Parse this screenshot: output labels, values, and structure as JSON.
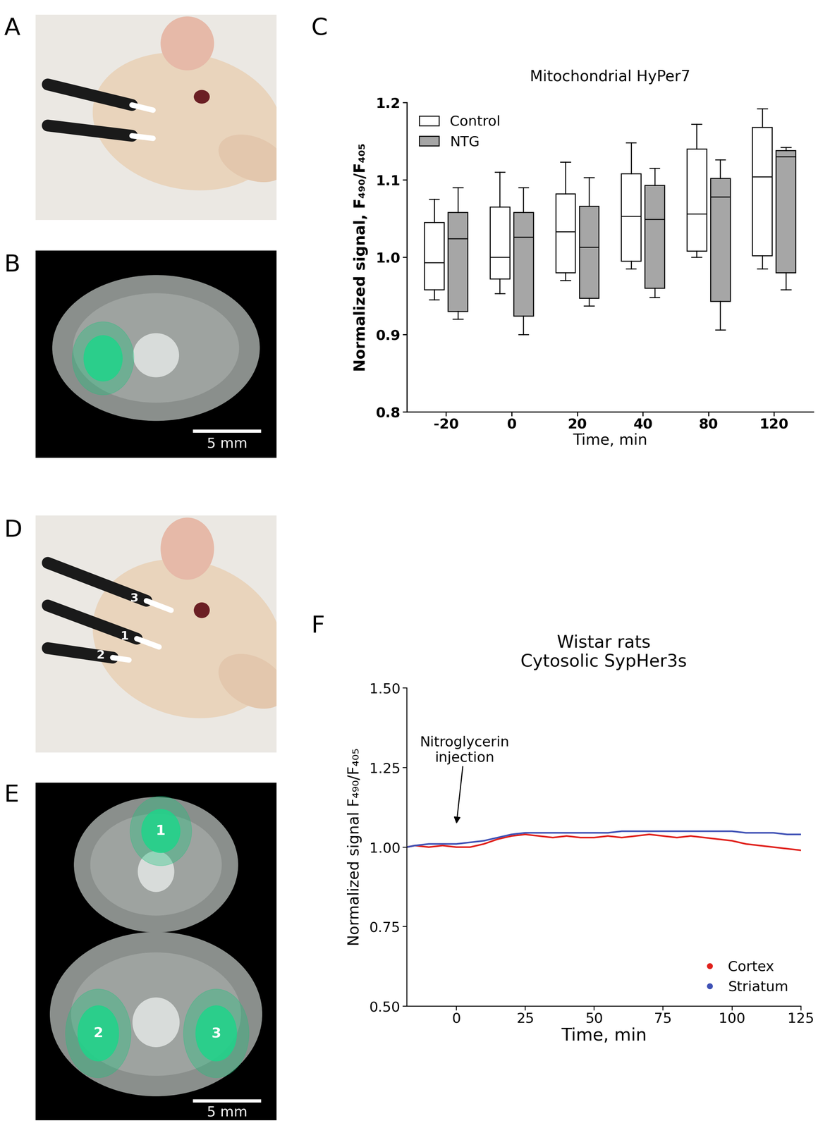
{
  "panel_labels": [
    "A",
    "B",
    "C",
    "D",
    "E",
    "F"
  ],
  "images": {
    "B": {
      "scale_bar": "5 mm"
    },
    "D": {
      "probe_labels": [
        "1",
        "2",
        "3"
      ]
    },
    "E": {
      "site_labels": [
        "1",
        "2",
        "3"
      ],
      "scale_bar": "5 mm"
    }
  },
  "chart_data": [
    {
      "type": "box",
      "title": "Mitochondrial HyPer7",
      "x_label": "Time, min",
      "y_label": "Normalized signal, F₄₉₀/F₄₀₅",
      "categories": [
        "-20",
        "0",
        "20",
        "40",
        "80",
        "120"
      ],
      "ylim": [
        0.8,
        1.2
      ],
      "yticks": [
        0.8,
        0.9,
        1.0,
        1.1,
        1.2
      ],
      "legend": "upper left",
      "series": [
        {
          "name": "Control",
          "color": "#ffffff",
          "whisker_low": [
            0.945,
            0.953,
            0.97,
            0.985,
            1.0,
            0.985
          ],
          "q1": [
            0.958,
            0.972,
            0.98,
            0.995,
            1.008,
            1.002
          ],
          "median": [
            0.993,
            1.0,
            1.033,
            1.053,
            1.056,
            1.104
          ],
          "q3": [
            1.045,
            1.065,
            1.082,
            1.108,
            1.14,
            1.168
          ],
          "whisker_high": [
            1.075,
            1.11,
            1.123,
            1.148,
            1.172,
            1.192
          ]
        },
        {
          "name": "NTG",
          "color": "#a6a6a6",
          "whisker_low": [
            0.92,
            0.9,
            0.937,
            0.948,
            0.906,
            0.958
          ],
          "q1": [
            0.93,
            0.924,
            0.947,
            0.96,
            0.943,
            0.98
          ],
          "median": [
            1.024,
            1.026,
            1.013,
            1.049,
            1.078,
            1.13
          ],
          "q3": [
            1.058,
            1.058,
            1.066,
            1.093,
            1.102,
            1.138
          ],
          "whisker_high": [
            1.09,
            1.09,
            1.103,
            1.115,
            1.126,
            1.142
          ]
        }
      ]
    },
    {
      "type": "line",
      "title": "Wistar rats\nCytosolic SypHer3s",
      "x_label": "Time, min",
      "y_label": "Normalized signal F₄₉₀/F₄₀₅",
      "x": [
        -18,
        -15,
        -10,
        -5,
        0,
        5,
        10,
        15,
        20,
        25,
        30,
        35,
        40,
        45,
        50,
        55,
        60,
        65,
        70,
        75,
        80,
        85,
        90,
        95,
        100,
        105,
        110,
        115,
        120,
        125
      ],
      "xlim": [
        -18,
        125
      ],
      "xticks": [
        0,
        25,
        50,
        75,
        100,
        125
      ],
      "ylim": [
        0.5,
        1.5
      ],
      "yticks": [
        {
          "value": 0.5,
          "label": "0.50"
        },
        {
          "value": 0.75,
          "label": "0.75"
        },
        {
          "value": 1.0,
          "label": "1.00"
        },
        {
          "value": 1.25,
          "label": "1.25"
        },
        {
          "value": 1.5,
          "label": "1.50"
        }
      ],
      "legend": "lower right",
      "annotation": {
        "text": "Nitroglycerin\ninjection",
        "x": 0,
        "y": 1.07
      },
      "series": [
        {
          "name": "Cortex",
          "color": "#e0201b",
          "values": [
            1.0,
            1.005,
            1.0,
            1.005,
            1.0,
            1.0,
            1.01,
            1.025,
            1.035,
            1.04,
            1.035,
            1.03,
            1.035,
            1.03,
            1.03,
            1.035,
            1.03,
            1.035,
            1.04,
            1.035,
            1.03,
            1.035,
            1.03,
            1.025,
            1.02,
            1.01,
            1.005,
            1.0,
            0.995,
            0.99
          ]
        },
        {
          "name": "Striatum",
          "color": "#3f51b5",
          "values": [
            1.0,
            1.005,
            1.01,
            1.01,
            1.01,
            1.015,
            1.02,
            1.03,
            1.04,
            1.045,
            1.045,
            1.045,
            1.045,
            1.045,
            1.045,
            1.045,
            1.05,
            1.05,
            1.05,
            1.05,
            1.05,
            1.05,
            1.05,
            1.05,
            1.05,
            1.045,
            1.045,
            1.045,
            1.04,
            1.04
          ]
        }
      ]
    }
  ]
}
